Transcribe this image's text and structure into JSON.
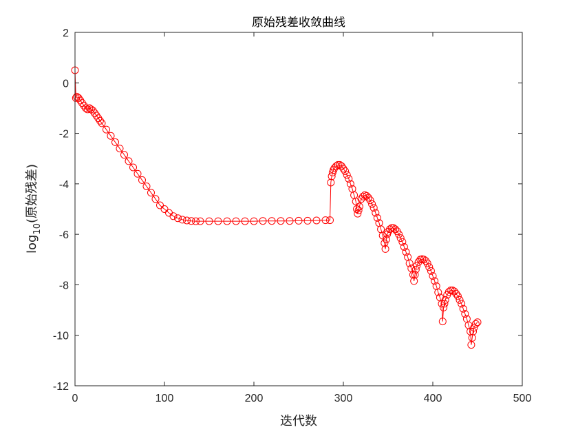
{
  "chart_data": {
    "type": "line",
    "title": "原始残差收敛曲线",
    "xlabel": "迭代数",
    "ylabel_main": "log",
    "ylabel_sub": "10",
    "ylabel_rest": "(原始残差)",
    "xlim": [
      0,
      500
    ],
    "ylim": [
      -12,
      2
    ],
    "xticks": [
      "0",
      "100",
      "200",
      "300",
      "400",
      "500"
    ],
    "yticks": [
      "2",
      "0",
      "-2",
      "-4",
      "-6",
      "-8",
      "-10",
      "-12"
    ],
    "grid": false,
    "marker": "o",
    "series_color": "#ff0000",
    "axis_color": "#262626",
    "series": [
      {
        "description": "sampled points approximating the convergence curve (x: iteration, y: log10 residual)",
        "x": [
          0,
          1,
          2,
          4,
          6,
          8,
          10,
          12,
          14,
          16,
          18,
          20,
          22,
          24,
          26,
          28,
          30,
          35,
          40,
          45,
          50,
          55,
          60,
          65,
          70,
          75,
          80,
          85,
          90,
          95,
          100,
          105,
          110,
          115,
          120,
          125,
          130,
          135,
          140,
          150,
          160,
          170,
          180,
          190,
          200,
          210,
          220,
          230,
          240,
          250,
          260,
          270,
          280,
          285,
          286,
          287,
          288,
          289,
          290,
          292,
          294,
          296,
          298,
          300,
          302,
          304,
          306,
          308,
          310,
          312,
          314,
          315,
          316,
          317,
          318,
          320,
          322,
          324,
          326,
          328,
          330,
          332,
          334,
          336,
          338,
          340,
          342,
          344,
          346,
          347,
          348,
          349,
          350,
          352,
          354,
          356,
          358,
          360,
          362,
          364,
          366,
          368,
          370,
          372,
          374,
          376,
          378,
          379,
          380,
          381,
          382,
          384,
          386,
          388,
          390,
          392,
          394,
          396,
          398,
          400,
          402,
          404,
          406,
          408,
          410,
          411,
          412,
          413,
          414,
          416,
          418,
          420,
          422,
          424,
          426,
          428,
          430,
          432,
          434,
          436,
          438,
          440,
          442,
          443,
          444,
          445,
          446,
          448,
          450
        ],
        "y": [
          0.5,
          -0.6,
          -0.55,
          -0.6,
          -0.7,
          -0.8,
          -0.9,
          -1.0,
          -1.05,
          -1.0,
          -1.05,
          -1.1,
          -1.2,
          -1.3,
          -1.4,
          -1.5,
          -1.6,
          -1.85,
          -2.1,
          -2.35,
          -2.6,
          -2.85,
          -3.1,
          -3.35,
          -3.6,
          -3.85,
          -4.1,
          -4.35,
          -4.6,
          -4.85,
          -5.0,
          -5.15,
          -5.28,
          -5.36,
          -5.42,
          -5.45,
          -5.47,
          -5.48,
          -5.48,
          -5.48,
          -5.48,
          -5.48,
          -5.48,
          -5.48,
          -5.48,
          -5.47,
          -5.47,
          -5.47,
          -5.47,
          -5.46,
          -5.46,
          -5.45,
          -5.44,
          -5.44,
          -3.95,
          -3.7,
          -3.55,
          -3.45,
          -3.38,
          -3.3,
          -3.25,
          -3.25,
          -3.3,
          -3.4,
          -3.5,
          -3.65,
          -3.8,
          -4.0,
          -4.2,
          -4.45,
          -4.7,
          -5.0,
          -5.18,
          -5.05,
          -4.9,
          -4.6,
          -4.5,
          -4.45,
          -4.48,
          -4.55,
          -4.65,
          -4.8,
          -4.95,
          -5.15,
          -5.35,
          -5.55,
          -5.8,
          -6.05,
          -6.35,
          -6.58,
          -6.2,
          -6.0,
          -5.9,
          -5.8,
          -5.75,
          -5.75,
          -5.8,
          -5.88,
          -6.0,
          -6.15,
          -6.3,
          -6.5,
          -6.7,
          -6.9,
          -7.15,
          -7.35,
          -7.6,
          -7.85,
          -7.6,
          -7.4,
          -7.25,
          -7.1,
          -7.0,
          -6.98,
          -7.0,
          -7.05,
          -7.15,
          -7.3,
          -7.45,
          -7.65,
          -7.85,
          -8.05,
          -8.3,
          -8.5,
          -8.75,
          -9.45,
          -8.9,
          -8.75,
          -8.6,
          -8.4,
          -8.28,
          -8.22,
          -8.22,
          -8.26,
          -8.35,
          -8.45,
          -8.6,
          -8.75,
          -8.95,
          -9.15,
          -9.35,
          -9.6,
          -9.85,
          -10.38,
          -10.1,
          -9.85,
          -9.7,
          -9.55,
          -9.48
        ]
      }
    ]
  }
}
